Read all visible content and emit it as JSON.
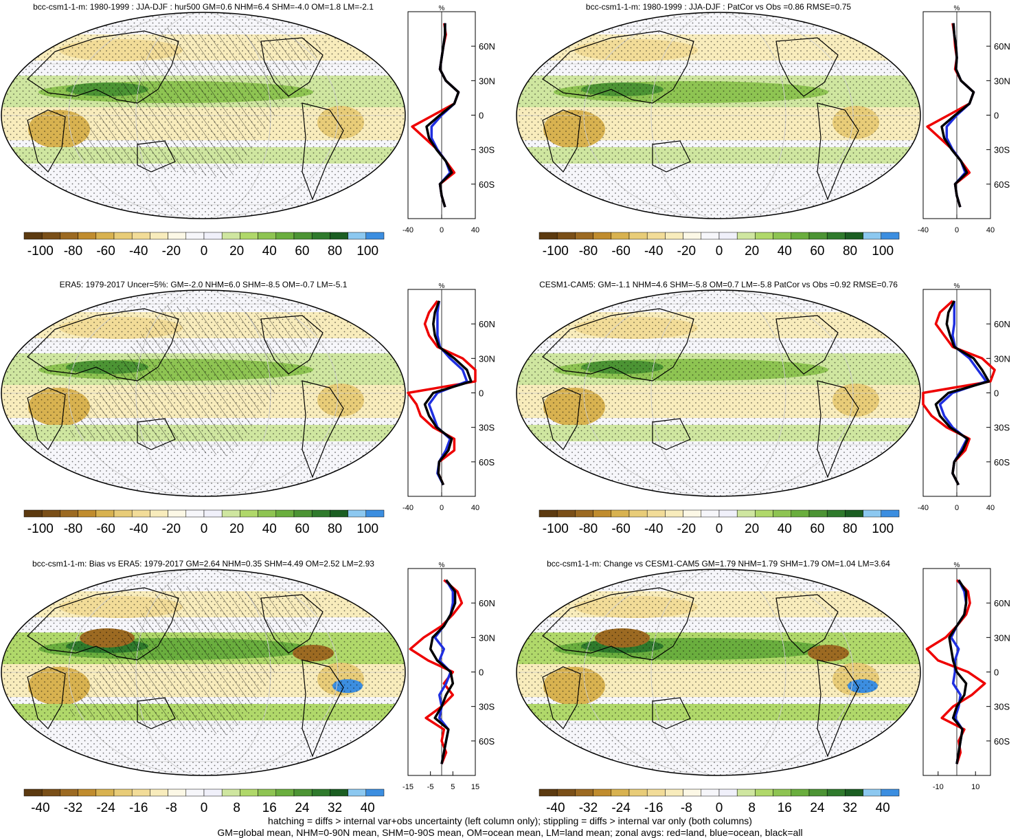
{
  "colors": {
    "land": "#ee0000",
    "ocean": "#1f2fe0",
    "all": "#000000",
    "palette": [
      "#5c3a10",
      "#7a4f18",
      "#9c6a22",
      "#c08c2e",
      "#d8b250",
      "#e8cc78",
      "#f2dc98",
      "#f8ecbc",
      "#fcf8e6",
      "#f6f6fa",
      "#f0f0fa",
      "#cfe6a0",
      "#b0d86a",
      "#8ec452",
      "#6aae3e",
      "#4c9434",
      "#2f7a2c",
      "#1b5e22",
      "#8cc8f0",
      "#3c8ee0"
    ]
  },
  "footnote": {
    "line1": "hatching = diffs > internal var+obs uncertainty (left column only); stippling = diffs > internal var only (both columns)",
    "line2": "GM=global mean, NHM=0-90N mean, SHM=0-90S mean, OM=ocean mean, LM=land mean; zonal avgs: red=land, blue=ocean, black=all"
  },
  "chart_data": [
    {
      "type": "map",
      "title": "bcc-csm1-1-m: 1980-1999 : JJA-DJF : hur500 GM=0.6 NHM=6.4 SHM=-4.0 OM=1.8 LM=-2.1",
      "colorbar_labels": [
        "-100",
        "-80",
        "-60",
        "-40",
        "-20",
        "0",
        "20",
        "40",
        "60",
        "80",
        "100"
      ],
      "hatching": true,
      "zonal": {
        "unit": "%",
        "xticks": [
          "-40",
          "0",
          "40"
        ],
        "xlim": [
          -40,
          40
        ],
        "ylabels": [
          "60N",
          "30N",
          "0",
          "30S",
          "60S"
        ],
        "lat": [
          80,
          70,
          60,
          50,
          40,
          30,
          20,
          10,
          0,
          -10,
          -20,
          -30,
          -40,
          -50,
          -60,
          -70,
          -80
        ],
        "land": [
          3,
          5,
          2,
          0,
          -2,
          5,
          20,
          15,
          -10,
          -35,
          -20,
          -5,
          5,
          15,
          -2,
          0,
          4
        ],
        "ocean": [
          4,
          4,
          2,
          0,
          -2,
          5,
          20,
          15,
          0,
          -12,
          -12,
          -5,
          5,
          10,
          -2,
          0,
          4
        ],
        "all": [
          4,
          4,
          2,
          0,
          -2,
          5,
          20,
          15,
          -2,
          -18,
          -15,
          -6,
          5,
          12,
          -2,
          0,
          4
        ]
      }
    },
    {
      "type": "map",
      "title": "bcc-csm1-1-m: 1980-1999 : JJA-DJF : PatCor vs Obs =0.86 RMSE=0.75",
      "colorbar_labels": [
        "-100",
        "-80",
        "-60",
        "-40",
        "-20",
        "0",
        "20",
        "40",
        "60",
        "80",
        "100"
      ],
      "hatching": false,
      "zonal": {
        "unit": "%",
        "xticks": [
          "-40",
          "0",
          "40"
        ],
        "xlim": [
          -40,
          40
        ],
        "ylabels": [
          "60N",
          "30N",
          "0",
          "30S",
          "60S"
        ],
        "lat": [
          80,
          70,
          60,
          50,
          40,
          30,
          20,
          10,
          0,
          -10,
          -20,
          -30,
          -40,
          -50,
          -60,
          -70,
          -80
        ],
        "land": [
          -5,
          -3,
          -2,
          0,
          -2,
          5,
          20,
          15,
          -10,
          -35,
          -20,
          -5,
          5,
          15,
          -2,
          0,
          4
        ],
        "ocean": [
          -4,
          -3,
          -1,
          0,
          -1,
          5,
          20,
          15,
          0,
          -12,
          -12,
          -5,
          5,
          10,
          -2,
          0,
          4
        ],
        "all": [
          -4,
          -3,
          -1,
          0,
          -1,
          5,
          20,
          15,
          -2,
          -18,
          -15,
          -6,
          5,
          12,
          -2,
          0,
          4
        ]
      }
    },
    {
      "type": "map",
      "title": "ERA5: 1979-2017 Uncer=5%: GM=-2.0 NHM=6.0 SHM=-8.5 OM=-0.7 LM=-5.1",
      "colorbar_labels": [
        "-100",
        "-80",
        "-60",
        "-40",
        "-20",
        "0",
        "20",
        "40",
        "60",
        "80",
        "100"
      ],
      "hatching": true,
      "zonal": {
        "unit": "%",
        "xticks": [
          "-40",
          "0",
          "40"
        ],
        "xlim": [
          -40,
          40
        ],
        "ylabels": [
          "60N",
          "30N",
          "0",
          "30S",
          "60S"
        ],
        "lat": [
          80,
          70,
          60,
          50,
          40,
          30,
          20,
          10,
          0,
          -10,
          -20,
          -30,
          -40,
          -50,
          -60,
          -70,
          -80
        ],
        "land": [
          -5,
          -15,
          -20,
          -15,
          -5,
          25,
          40,
          40,
          -40,
          -30,
          -25,
          -10,
          15,
          15,
          -3,
          -4,
          2
        ],
        "ocean": [
          -3,
          -5,
          -5,
          -5,
          -2,
          10,
          25,
          30,
          -5,
          -15,
          -10,
          -5,
          10,
          5,
          -3,
          -5,
          2
        ],
        "all": [
          -3,
          -8,
          -10,
          -8,
          -3,
          15,
          30,
          35,
          -10,
          -20,
          -15,
          -6,
          12,
          8,
          -3,
          -4,
          2
        ]
      }
    },
    {
      "type": "map",
      "title": "CESM1-CAM5: GM=-1.1 NHM=4.6 SHM=-5.8 OM=0.7 LM=-5.8 PatCor vs Obs =0.92 RMSE=0.76",
      "colorbar_labels": [
        "-100",
        "-80",
        "-60",
        "-40",
        "-20",
        "0",
        "20",
        "40",
        "60",
        "80",
        "100"
      ],
      "hatching": false,
      "zonal": {
        "unit": "%",
        "xticks": [
          "-40",
          "0",
          "40"
        ],
        "xlim": [
          -40,
          40
        ],
        "ylabels": [
          "60N",
          "30N",
          "0",
          "30S",
          "60S"
        ],
        "lat": [
          80,
          70,
          60,
          50,
          40,
          30,
          20,
          10,
          0,
          -10,
          -20,
          -30,
          -40,
          -50,
          -60,
          -70,
          -80
        ],
        "land": [
          -5,
          -20,
          -25,
          -15,
          -5,
          30,
          45,
          40,
          -40,
          -40,
          -30,
          -12,
          15,
          10,
          -3,
          -5,
          2
        ],
        "ocean": [
          -3,
          -3,
          -3,
          -5,
          -2,
          15,
          25,
          35,
          -5,
          -20,
          -15,
          -5,
          12,
          5,
          -3,
          -5,
          2
        ],
        "all": [
          -3,
          -10,
          -12,
          -8,
          -3,
          20,
          30,
          38,
          -10,
          -25,
          -20,
          -8,
          13,
          7,
          -3,
          -5,
          2
        ]
      }
    },
    {
      "type": "map",
      "title": "bcc-csm1-1-m: Bias vs ERA5: 1979-2017 GM=2.64 NHM=0.35 SHM=4.49 OM=2.52 LM=2.93",
      "colorbar_labels": [
        "-40",
        "-32",
        "-24",
        "-16",
        "-8",
        "0",
        "8",
        "16",
        "24",
        "32",
        "40"
      ],
      "hatching": true,
      "zonal": {
        "unit": "%",
        "xticks": [
          "-15",
          "-5",
          "5",
          "15"
        ],
        "xlim": [
          -15,
          15
        ],
        "ylabels": [
          "60N",
          "30N",
          "0",
          "30S",
          "60S"
        ],
        "lat": [
          80,
          70,
          60,
          50,
          40,
          30,
          20,
          10,
          0,
          -10,
          -20,
          -30,
          -40,
          -50,
          -60,
          -70,
          -80
        ],
        "land": [
          1,
          7,
          9,
          5,
          0,
          -8,
          -14,
          -6,
          5,
          1,
          5,
          0,
          -7,
          1,
          0,
          2,
          0
        ],
        "ocean": [
          2,
          5,
          5,
          4,
          1,
          -3,
          1,
          -1,
          4,
          2,
          -1,
          0,
          -1,
          3,
          2,
          1,
          0
        ],
        "all": [
          2,
          6,
          6,
          4,
          1,
          -4,
          -5,
          -2,
          4,
          5,
          2,
          0,
          -3,
          3,
          2,
          1,
          0
        ]
      }
    },
    {
      "type": "map",
      "title": "bcc-csm1-1-m: Change vs CESM1-CAM5 GM=1.79 NHM=1.79 SHM=1.79 OM=1.04 LM=3.64",
      "colorbar_labels": [
        "-40",
        "-32",
        "-24",
        "-16",
        "-8",
        "0",
        "8",
        "16",
        "24",
        "32",
        "40"
      ],
      "hatching": false,
      "zonal": {
        "unit": "%",
        "xticks": [
          "-10",
          "10"
        ],
        "xlim": [
          -18,
          18
        ],
        "ylabels": [
          "60N",
          "30N",
          "0",
          "30S",
          "60S"
        ],
        "lat": [
          80,
          70,
          60,
          50,
          40,
          30,
          20,
          10,
          0,
          -10,
          -20,
          -30,
          -40,
          -50,
          -60,
          -70,
          -80
        ],
        "land": [
          0,
          6,
          7,
          5,
          0,
          -6,
          -16,
          -10,
          6,
          15,
          8,
          -2,
          -8,
          4,
          1,
          2,
          0
        ],
        "ocean": [
          1,
          4,
          5,
          4,
          0,
          -3,
          1,
          -1,
          -1,
          -2,
          2,
          1,
          -1,
          3,
          2,
          1,
          0
        ],
        "all": [
          1,
          5,
          5,
          4,
          0,
          -4,
          -3,
          -2,
          0,
          5,
          4,
          0,
          -2,
          3,
          2,
          1,
          0
        ]
      }
    }
  ]
}
